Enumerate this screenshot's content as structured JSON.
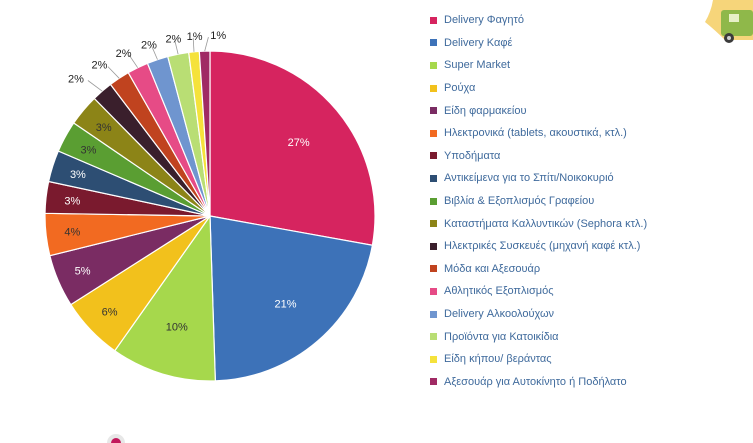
{
  "chart_data": {
    "type": "pie",
    "title": "",
    "categories": [
      "Delivery Φαγητό",
      "Delivery Καφέ",
      "Super Market",
      "Ρούχα",
      "Είδη φαρμακείου",
      "Ηλεκτρονικά (tablets, ακουστικά, κτλ.)",
      "Υποδήματα",
      "Αντικείμενα για το Σπίτι/Νοικοκυριό",
      "Βιβλία & Εξοπλισμός Γραφείου",
      "Καταστήματα Καλλυντικών (Sephora κτλ.)",
      "Ηλεκτρικές Συσκευές (μηχανή καφέ κτλ.)",
      "Μόδα και Αξεσουάρ",
      "Αθλητικός Εξοπλισμός",
      "Delivery Αλκοολούχων",
      "Προϊόντα για Κατοικίδια",
      "Είδη κήπου/ βεράντας",
      "Αξεσουάρ για Αυτοκίνητο ή Ποδήλατο"
    ],
    "values": [
      27,
      21,
      10,
      6,
      5,
      4,
      3,
      3,
      3,
      3,
      2,
      2,
      2,
      2,
      2,
      1,
      1
    ],
    "data_labels": [
      "27%",
      "21%",
      "10%",
      "6%",
      "5%",
      "4%",
      "3%",
      "3%",
      "3%",
      "3%",
      "2%",
      "2%",
      "2%",
      "2%",
      "2%",
      "1%",
      "1%"
    ],
    "colors": [
      "#d6245f",
      "#3d72b8",
      "#a6d84c",
      "#f2c11c",
      "#7a2c63",
      "#f26a21",
      "#7a1a2e",
      "#2d4e73",
      "#5a9e32",
      "#8c8417",
      "#3a1f2c",
      "#c0431f",
      "#e64b86",
      "#6f95cf",
      "#b9de74",
      "#f5e23b",
      "#a02a64"
    ],
    "legend_position": "right"
  },
  "decor": {
    "badge": "delivery-truck-icon",
    "bottom_logo": "logo-icon"
  }
}
